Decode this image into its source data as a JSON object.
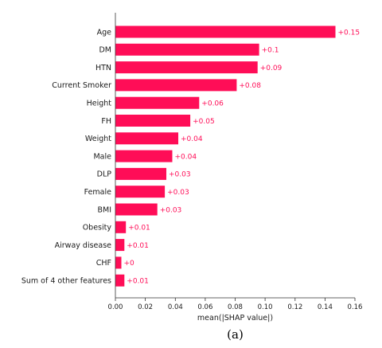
{
  "chart_data": {
    "type": "bar",
    "orientation": "horizontal",
    "categories": [
      "Age",
      "DM",
      "HTN",
      "Current Smoker",
      "Height",
      "FH",
      "Weight",
      "Male",
      "DLP",
      "Female",
      "BMI",
      "Obesity",
      "Airway disease",
      "CHF",
      "Sum of 4 other features"
    ],
    "values": [
      0.147,
      0.096,
      0.095,
      0.081,
      0.056,
      0.05,
      0.042,
      0.038,
      0.034,
      0.033,
      0.028,
      0.007,
      0.006,
      0.004,
      0.006
    ],
    "value_labels": [
      "+0.15",
      "+0.1",
      "+0.09",
      "+0.08",
      "+0.06",
      "+0.05",
      "+0.04",
      "+0.04",
      "+0.03",
      "+0.03",
      "+0.03",
      "+0.01",
      "+0.01",
      "+0",
      "+0.01"
    ],
    "xlabel": "mean(|SHAP value|)",
    "ylabel": "",
    "xlim": [
      0,
      0.16
    ],
    "xticks": [
      0,
      0.02,
      0.04,
      0.06,
      0.08,
      0.1,
      0.12,
      0.14,
      0.16
    ],
    "xtick_labels": [
      "0.00",
      "0.02",
      "0.04",
      "0.06",
      "0.08",
      "0.10",
      "0.12",
      "0.14",
      "0.16"
    ],
    "bar_color": "#ff0d57",
    "grid": false,
    "legend": "none"
  },
  "caption": "(a)"
}
